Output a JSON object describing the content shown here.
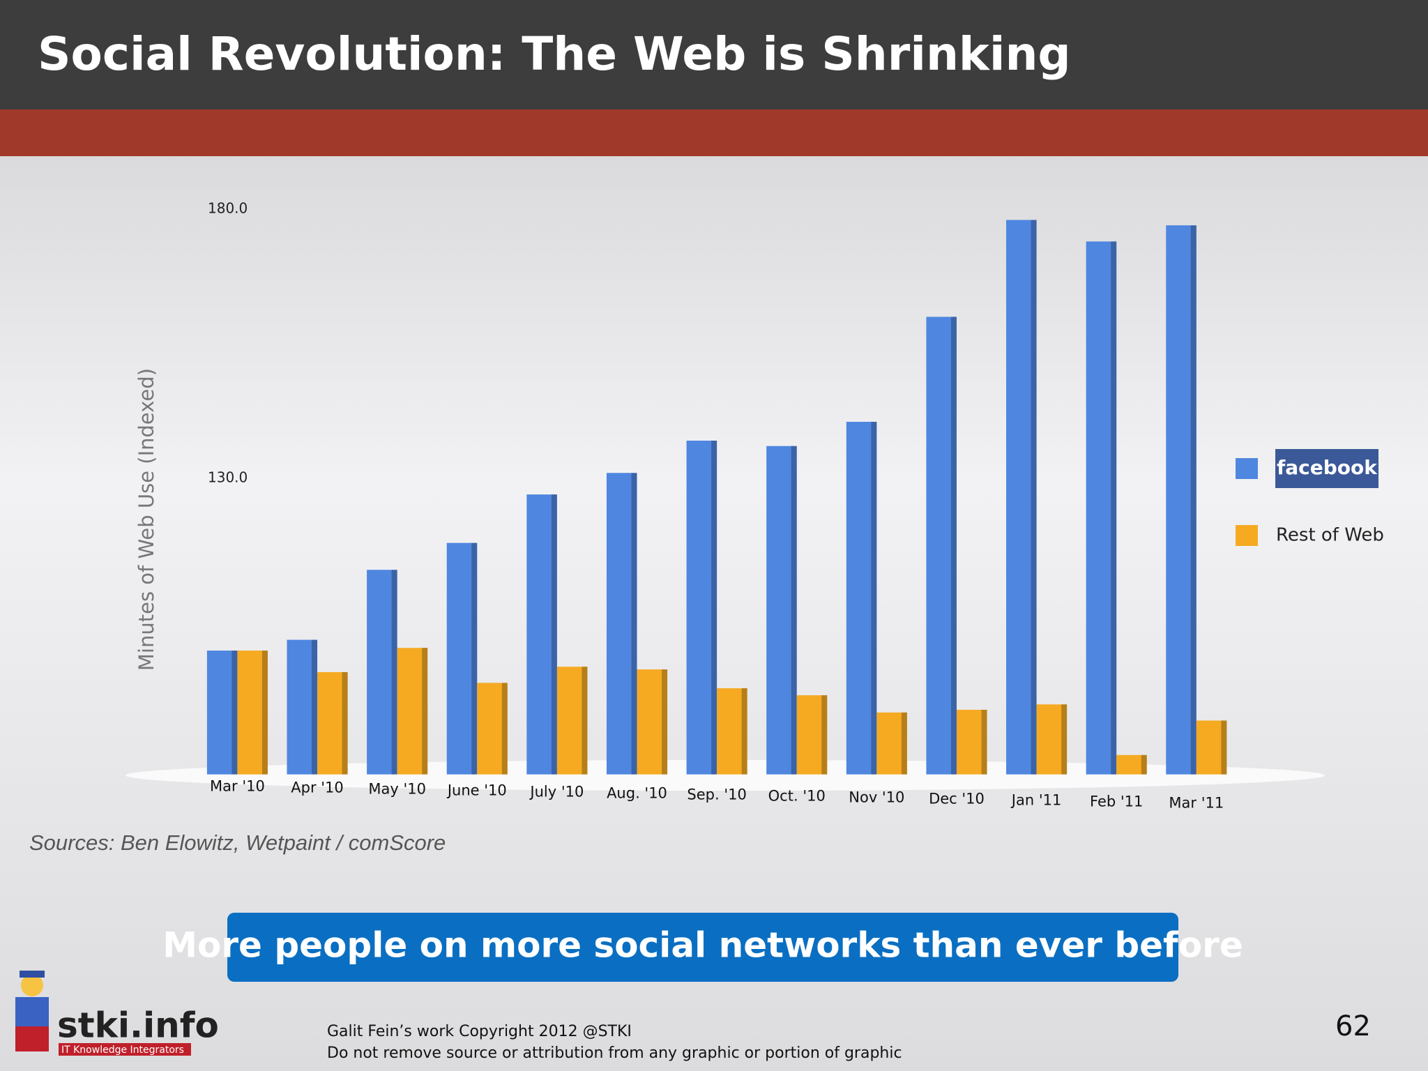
{
  "title": "Social Revolution: The Web is Shrinking",
  "chart_data": {
    "type": "bar",
    "y_label": "Minutes of Web Use (Indexed)",
    "categories": [
      "Mar '10",
      "Apr '10",
      "May '10",
      "June '10",
      "July '10",
      "Aug. '10",
      "Sep. '10",
      "Oct. '10",
      "Nov '10",
      "Dec '10",
      "Jan '11",
      "Feb '11",
      "Mar '11"
    ],
    "series": [
      {
        "name": "facebook",
        "color": "#4f86e0",
        "values": [
          98,
          100,
          113,
          118,
          127,
          131,
          137,
          136,
          140.5,
          160,
          178,
          174,
          177
        ]
      },
      {
        "name": "Rest of Web",
        "color": "#f5aa22",
        "values": [
          98,
          94,
          98.5,
          92,
          95,
          94.5,
          91,
          89.7,
          86.5,
          87,
          88,
          78.6,
          85
        ]
      }
    ],
    "ylim": [
      75,
      185
    ],
    "yticks": [
      {
        "value": 130,
        "label": "130.0"
      },
      {
        "value": 180,
        "label": "180.0"
      }
    ],
    "grid": false,
    "legend": "right"
  },
  "source": "Sources:  Ben Elowitz, Wetpaint / comScore",
  "callout": "More people on more social networks than ever before",
  "logo": {
    "name": "stki.info",
    "tagline": "IT Knowledge Integrators"
  },
  "footer": [
    "Galit Fein’s work  Copyright  2012 @STKI",
    "Do not remove source or attribution from any graphic or portion of graphic"
  ],
  "page_number": "62"
}
